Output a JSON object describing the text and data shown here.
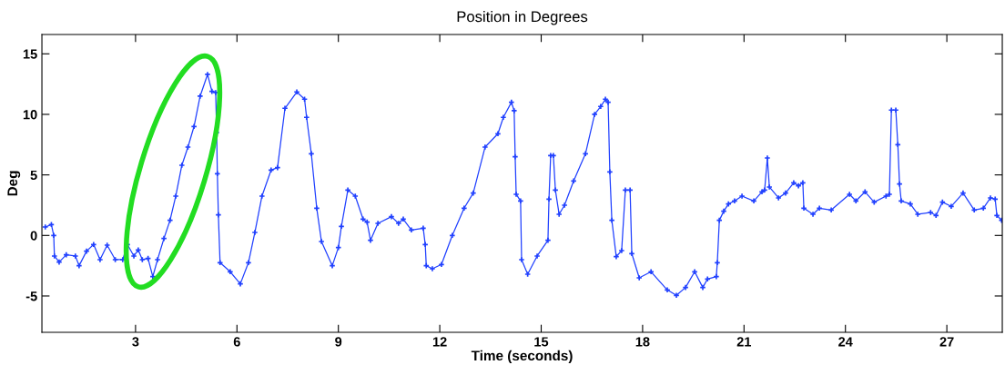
{
  "chart_data": {
    "type": "line",
    "title": "Position in Degrees",
    "xlabel": "Time (seconds)",
    "ylabel": "Deg",
    "xlim": [
      0.23,
      28.64
    ],
    "xticks": [
      3,
      6,
      9,
      12,
      15,
      18,
      21,
      24,
      27
    ],
    "ylim": [
      -8,
      16.6
    ],
    "yticks": [
      -5,
      0,
      5,
      10,
      15
    ],
    "grid": false,
    "marker": "cross",
    "line_style": "solid",
    "series": [
      {
        "color": "#2040ff",
        "x": [
          0.33,
          0.51,
          0.58,
          0.6,
          0.74,
          0.95,
          1.22,
          1.33,
          1.55,
          1.76,
          1.95,
          2.16,
          2.4,
          2.62,
          2.76,
          2.95,
          3.08,
          3.2,
          3.37,
          3.51,
          3.65,
          3.84,
          4.02,
          4.19,
          4.37,
          4.55,
          4.73,
          4.91,
          5.13,
          5.26,
          5.37,
          5.4,
          5.42,
          5.45,
          5.5,
          5.8,
          6.1,
          6.34,
          6.53,
          6.74,
          7.01,
          7.2,
          7.42,
          7.77,
          8.0,
          8.06,
          8.2,
          8.36,
          8.5,
          8.82,
          9.0,
          9.09,
          9.28,
          9.5,
          9.73,
          9.85,
          9.95,
          10.17,
          10.57,
          10.78,
          10.92,
          11.16,
          11.51,
          11.57,
          11.6,
          11.78,
          12.05,
          12.37,
          12.72,
          12.99,
          13.34,
          13.72,
          13.88,
          14.12,
          14.2,
          14.23,
          14.26,
          14.39,
          14.42,
          14.6,
          14.88,
          15.2,
          15.23,
          15.28,
          15.36,
          15.42,
          15.53,
          15.69,
          15.96,
          16.31,
          16.58,
          16.76,
          16.9,
          16.98,
          17.03,
          17.09,
          17.22,
          17.38,
          17.49,
          17.63,
          17.68,
          17.9,
          18.25,
          18.73,
          19.0,
          19.27,
          19.54,
          19.78,
          19.92,
          20.18,
          20.21,
          20.27,
          20.4,
          20.54,
          20.72,
          20.94,
          21.29,
          21.53,
          21.61,
          21.69,
          21.75,
          22.02,
          22.23,
          22.47,
          22.61,
          22.74,
          22.77,
          23.04,
          23.23,
          23.58,
          24.12,
          24.31,
          24.58,
          24.85,
          25.2,
          25.3,
          25.36,
          25.49,
          25.55,
          25.6,
          25.65,
          25.92,
          26.14,
          26.52,
          26.68,
          26.87,
          27.13,
          27.48,
          27.81,
          28.08,
          28.29,
          28.43,
          28.48,
          28.62
        ],
        "values": [
          0.7,
          0.9,
          0,
          -1.7,
          -2.2,
          -1.6,
          -1.7,
          -2.5,
          -1.3,
          -0.75,
          -2.0,
          -0.8,
          -2.0,
          -2.0,
          -0.75,
          -1.7,
          -1.2,
          -2.0,
          -1.9,
          -3.4,
          -2.0,
          -0.25,
          1.25,
          3.25,
          5.8,
          7.3,
          9.0,
          11.5,
          13.3,
          11.9,
          11.8,
          8.5,
          5.1,
          1.7,
          -2.25,
          -3.0,
          -4.0,
          -2.25,
          0.25,
          3.25,
          5.4,
          5.6,
          10.5,
          11.85,
          11.25,
          9.75,
          6.75,
          2.25,
          -0.5,
          -2.5,
          -1.0,
          0.75,
          3.75,
          3.25,
          1.35,
          1.1,
          -0.4,
          1.0,
          1.55,
          1.0,
          1.35,
          0.45,
          0.6,
          -0.75,
          -2.5,
          -2.75,
          -2.4,
          0,
          2.25,
          3.5,
          7.3,
          8.4,
          9.75,
          11.0,
          10.3,
          6.5,
          3.4,
          2.85,
          -2.0,
          -3.2,
          -1.7,
          -0.4,
          3.0,
          6.6,
          6.6,
          3.75,
          1.75,
          2.5,
          4.5,
          6.75,
          10.0,
          10.65,
          11.25,
          11.0,
          5.25,
          1.25,
          -1.75,
          -1.25,
          3.75,
          3.75,
          -1.5,
          -3.5,
          -3.0,
          -4.5,
          -4.95,
          -4.3,
          -3.0,
          -4.3,
          -3.6,
          -3.4,
          -2.25,
          1.25,
          2.0,
          2.6,
          2.85,
          3.25,
          2.85,
          3.6,
          3.75,
          6.4,
          4.0,
          3.1,
          3.5,
          4.35,
          4.1,
          4.35,
          2.25,
          1.75,
          2.25,
          2.1,
          3.4,
          2.85,
          3.6,
          2.75,
          3.25,
          3.4,
          10.35,
          10.35,
          7.5,
          4.25,
          2.85,
          2.6,
          1.75,
          1.9,
          1.65,
          2.75,
          2.4,
          3.5,
          2.1,
          2.25,
          3.1,
          3.0,
          1.65,
          1.25
        ]
      }
    ]
  }
}
